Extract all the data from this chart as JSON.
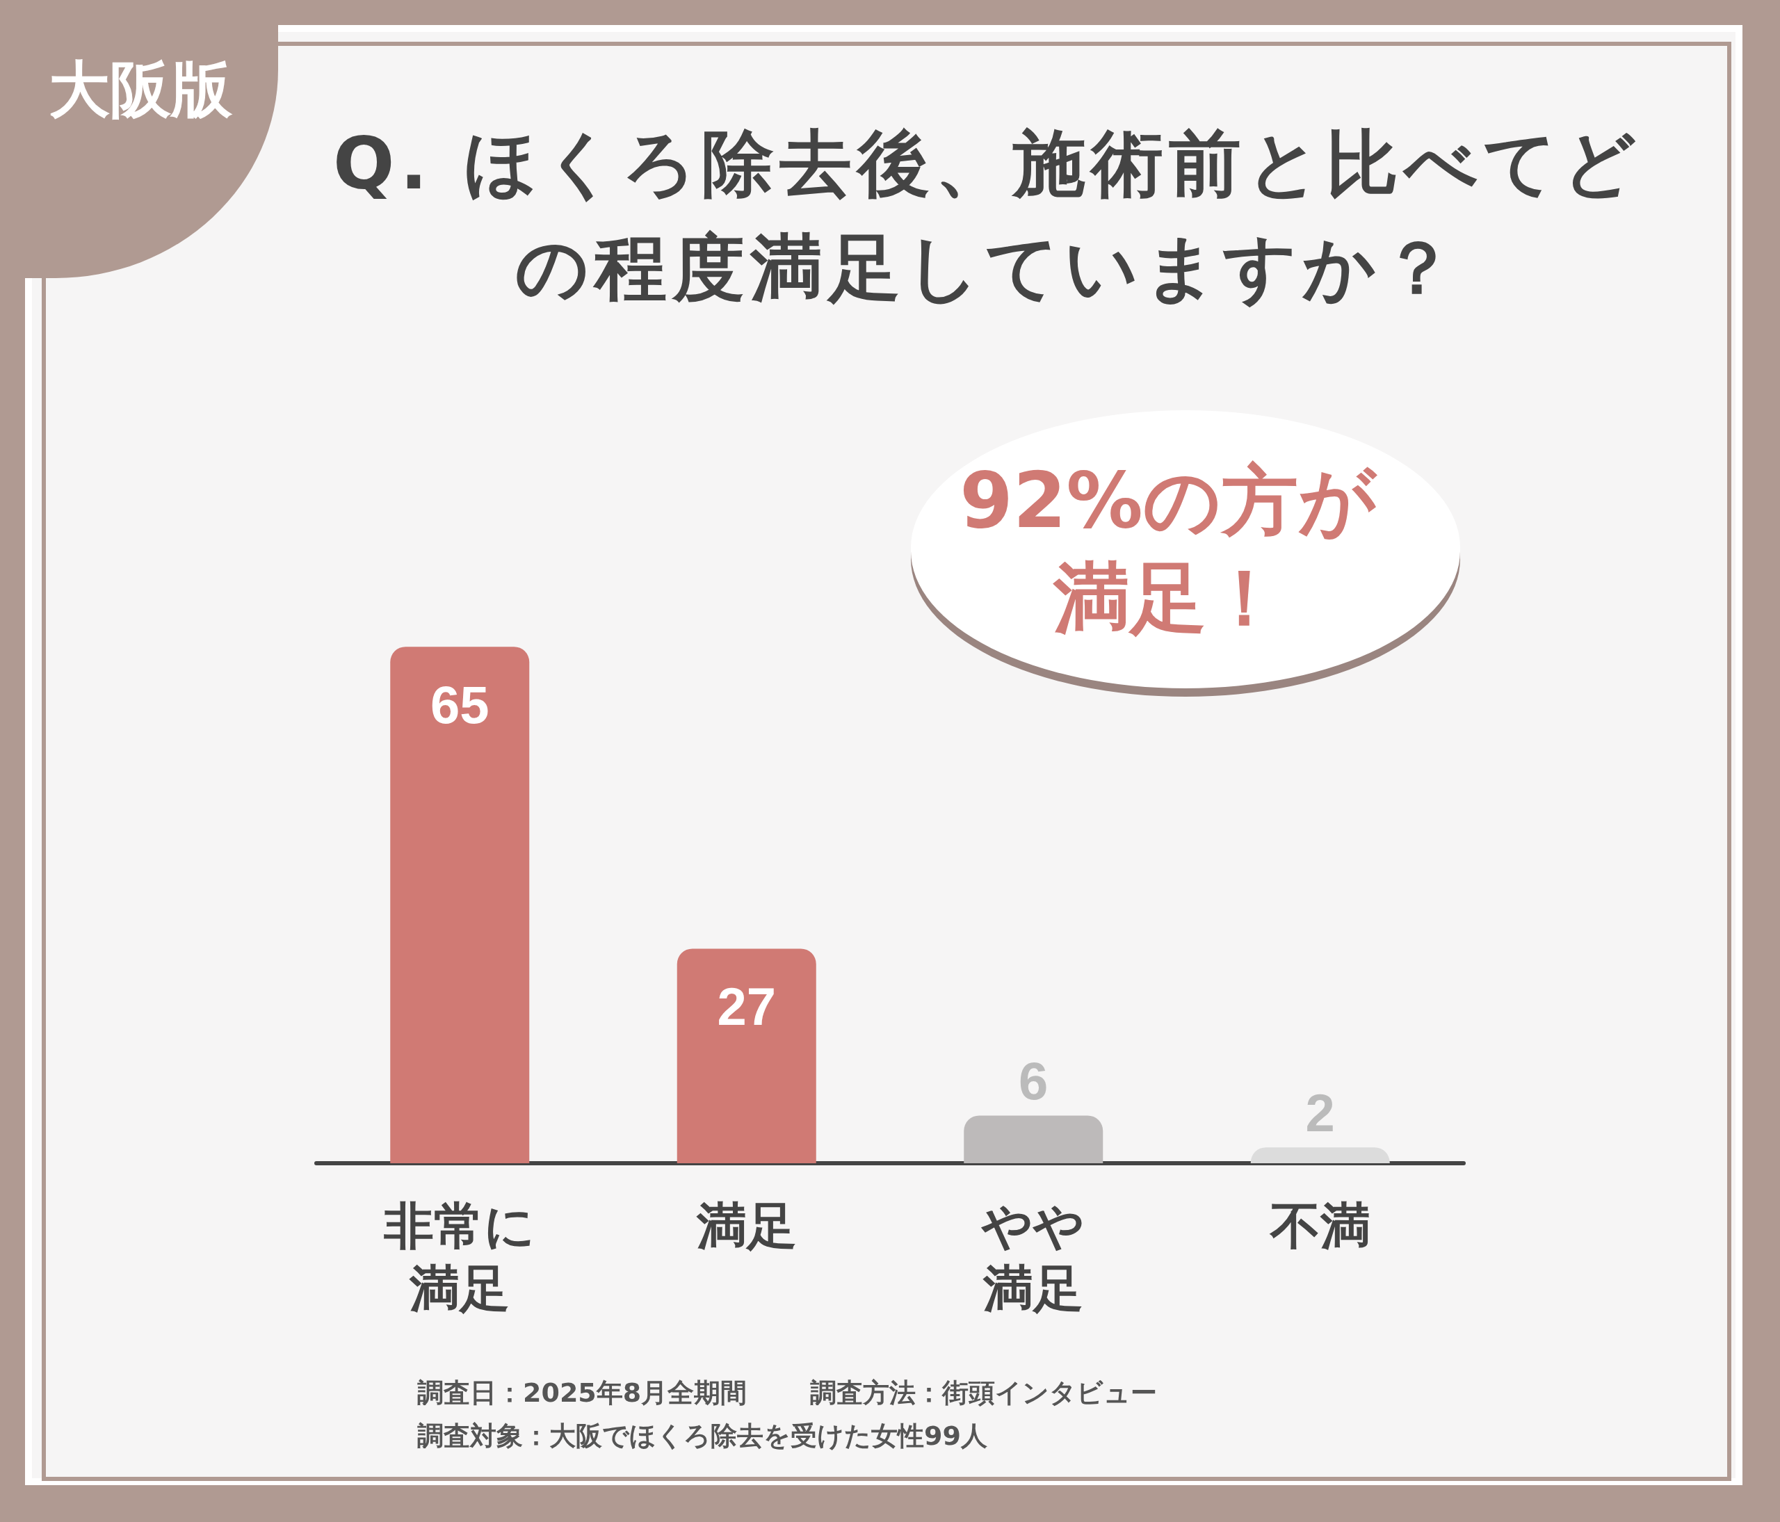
{
  "chart_data": {
    "type": "bar",
    "title": "Q. ほくろ除去後、施術前と比べてどの程度満足していますか？",
    "categories": [
      "非常に満足",
      "満足",
      "やや満足",
      "不満"
    ],
    "values": [
      65,
      27,
      6,
      2
    ],
    "colors": [
      "#d07a74",
      "#d07a74",
      "#bdbaba",
      "#dcdcdc"
    ],
    "data_labels": true,
    "grid": false,
    "annotations": [
      "大阪版",
      "92%の方が満足！",
      "調査日：2025年8月全期間",
      "調査方法：街頭インタビュー",
      "調査対象：大阪でほくろ除去を受けた女性99人"
    ]
  }
}
